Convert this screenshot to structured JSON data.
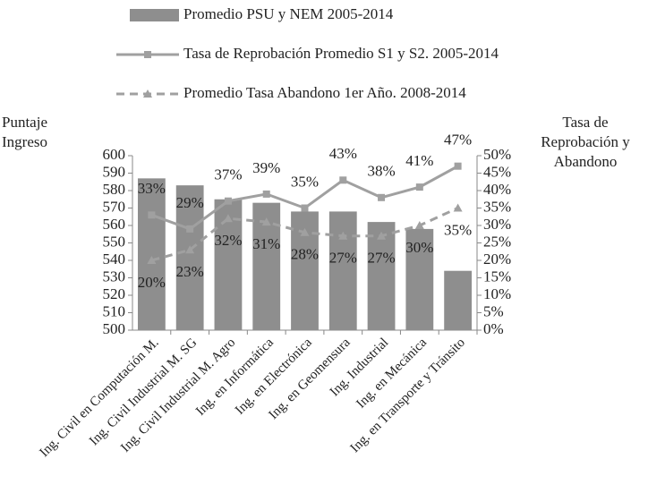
{
  "chart_data": {
    "type": "bar",
    "y_label": "Puntaje Ingreso",
    "y2_label": "Tasa de Reprobación y Abandono",
    "categories": [
      "Ing. Civil en Computación M.",
      "Ing. Civil Industrial M. SG",
      "Ing. Civil Industrial M. Agro",
      "Ing. en Informática",
      "Ing. en Electrónica",
      "Ing. en Geomensura",
      "Ing. Industrial",
      "Ing. en Mecánica",
      "Ing. en Transporte y Tránsito"
    ],
    "series": [
      {
        "name": "Promedio PSU y NEM 2005-2014",
        "type": "bar",
        "color": "#8e8e8e",
        "values": [
          587,
          583,
          575,
          573,
          568,
          568,
          562,
          558,
          534
        ]
      },
      {
        "name": "Tasa de Reprobación Promedio S1 y S2. 2005-2014",
        "type": "line",
        "axis": "y2",
        "color": "#a0a0a0",
        "marker": "square",
        "dashed": false,
        "label_side": "above",
        "values": [
          33,
          29,
          37,
          39,
          35,
          43,
          38,
          41,
          47
        ],
        "value_labels": [
          "33%",
          "29%",
          "37%",
          "39%",
          "35%",
          "43%",
          "38%",
          "41%",
          "47%"
        ]
      },
      {
        "name": "Promedio Tasa Abandono 1er Año. 2008-2014",
        "type": "line",
        "axis": "y2",
        "color": "#a0a0a0",
        "marker": "triangle",
        "dashed": true,
        "label_side": "below",
        "values": [
          20,
          23,
          32,
          31,
          28,
          27,
          27,
          30,
          35
        ],
        "value_labels": [
          "20%",
          "23%",
          "32%",
          "31%",
          "28%",
          "27%",
          "27%",
          "30%",
          "35%"
        ]
      }
    ],
    "ylim": [
      500,
      600
    ],
    "yticks": [
      500,
      510,
      520,
      530,
      540,
      550,
      560,
      570,
      580,
      590,
      600
    ],
    "y2lim": [
      0,
      50
    ],
    "y2ticks": [
      {
        "value": 0,
        "label": "0%"
      },
      {
        "value": 5,
        "label": "5%"
      },
      {
        "value": 10,
        "label": "10%"
      },
      {
        "value": 15,
        "label": "15%"
      },
      {
        "value": 20,
        "label": "20%"
      },
      {
        "value": 25,
        "label": "25%"
      },
      {
        "value": 30,
        "label": "30%"
      },
      {
        "value": 35,
        "label": "35%"
      },
      {
        "value": 40,
        "label": "40%"
      },
      {
        "value": 45,
        "label": "45%"
      },
      {
        "value": 50,
        "label": "50%"
      }
    ]
  }
}
